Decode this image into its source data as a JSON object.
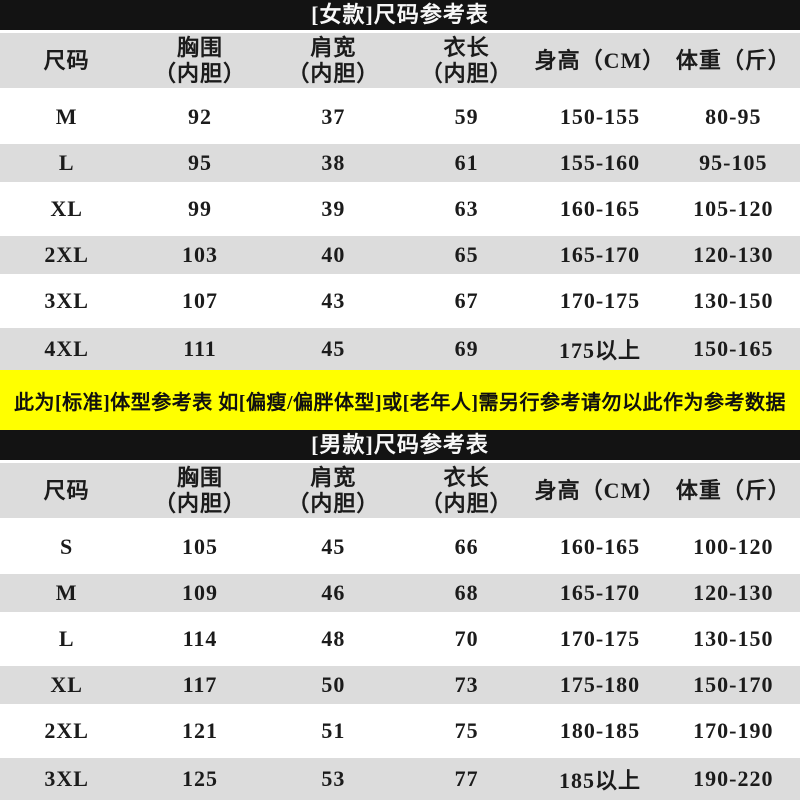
{
  "colors": {
    "title_bar_bg": "#131313",
    "title_bar_text": "#f7f7f7",
    "row_bg": "#ffffff",
    "row_alt_bg": "#dcdcdc",
    "notice_bg": "#ffff00",
    "notice_text": "#101010",
    "body_text": "#1b1b1b"
  },
  "notice": "此为[标准]体型参考表 如[偏瘦/偏胖体型]或[老年人]需另行参考请勿以此作为参考数据",
  "chart_data": [
    {
      "type": "table",
      "title": "[女款]尺码参考表",
      "columns": [
        [
          "尺码"
        ],
        [
          "胸围",
          "（内胆）"
        ],
        [
          "肩宽",
          "（内胆）"
        ],
        [
          "衣长",
          "（内胆）"
        ],
        [
          "身高（CM）"
        ],
        [
          "体重（斤）"
        ]
      ],
      "rows": [
        [
          "M",
          "92",
          "37",
          "59",
          "150-155",
          "80-95"
        ],
        [
          "L",
          "95",
          "38",
          "61",
          "155-160",
          "95-105"
        ],
        [
          "XL",
          "99",
          "39",
          "63",
          "160-165",
          "105-120"
        ],
        [
          "2XL",
          "103",
          "40",
          "65",
          "165-170",
          "120-130"
        ],
        [
          "3XL",
          "107",
          "43",
          "67",
          "170-175",
          "130-150"
        ],
        [
          "4XL",
          "111",
          "45",
          "69",
          "175以上",
          "150-165"
        ]
      ]
    },
    {
      "type": "table",
      "title": "[男款]尺码参考表",
      "columns": [
        [
          "尺码"
        ],
        [
          "胸围",
          "（内胆）"
        ],
        [
          "肩宽",
          "（内胆）"
        ],
        [
          "衣长",
          "（内胆）"
        ],
        [
          "身高（CM）"
        ],
        [
          "体重（斤）"
        ]
      ],
      "rows": [
        [
          "S",
          "105",
          "45",
          "66",
          "160-165",
          "100-120"
        ],
        [
          "M",
          "109",
          "46",
          "68",
          "165-170",
          "120-130"
        ],
        [
          "L",
          "114",
          "48",
          "70",
          "170-175",
          "130-150"
        ],
        [
          "XL",
          "117",
          "50",
          "73",
          "175-180",
          "150-170"
        ],
        [
          "2XL",
          "121",
          "51",
          "75",
          "180-185",
          "170-190"
        ],
        [
          "3XL",
          "125",
          "53",
          "77",
          "185以上",
          "190-220"
        ]
      ]
    }
  ]
}
